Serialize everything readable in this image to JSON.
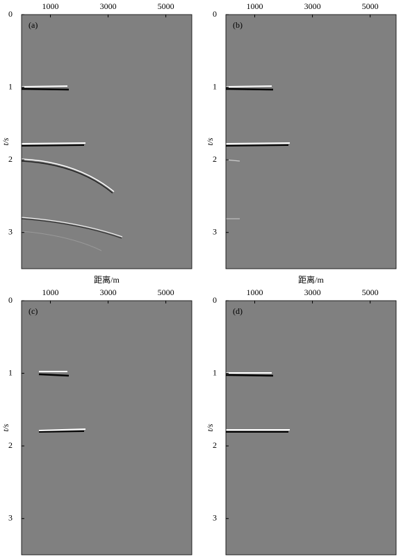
{
  "chart_data": [
    {
      "type": "seismic",
      "panel_label": "(a)",
      "xlabel": "距离/m",
      "ylabel": "t/s",
      "xlim": [
        0,
        5900
      ],
      "xticks": [
        1000,
        3000,
        5000
      ],
      "ylim": [
        0,
        3.5
      ],
      "yticks": [
        0,
        1,
        2,
        3
      ],
      "color": "#808080"
    },
    {
      "type": "seismic",
      "panel_label": "(b)",
      "xlabel": "距离/m",
      "ylabel": "t/s",
      "xlim": [
        0,
        5900
      ],
      "xticks": [
        1000,
        3000,
        5000
      ],
      "ylim": [
        0,
        3.5
      ],
      "yticks": [
        0,
        1,
        2,
        3
      ],
      "color": "#808080"
    },
    {
      "type": "seismic",
      "panel_label": "(c)",
      "ylabel": "t/s",
      "xlim": [
        0,
        5900
      ],
      "xticks": [
        1000,
        3000,
        5000
      ],
      "ylim": [
        0,
        3.5
      ],
      "yticks": [
        0,
        1,
        2,
        3
      ],
      "color": "#808080"
    },
    {
      "type": "seismic",
      "panel_label": "(d)",
      "ylabel": "t/s",
      "xlim": [
        0,
        5900
      ],
      "xticks": [
        1000,
        3000,
        5000
      ],
      "ylim": [
        0,
        3.5
      ],
      "yticks": [
        0,
        1,
        2,
        3
      ],
      "color": "#808080"
    }
  ]
}
